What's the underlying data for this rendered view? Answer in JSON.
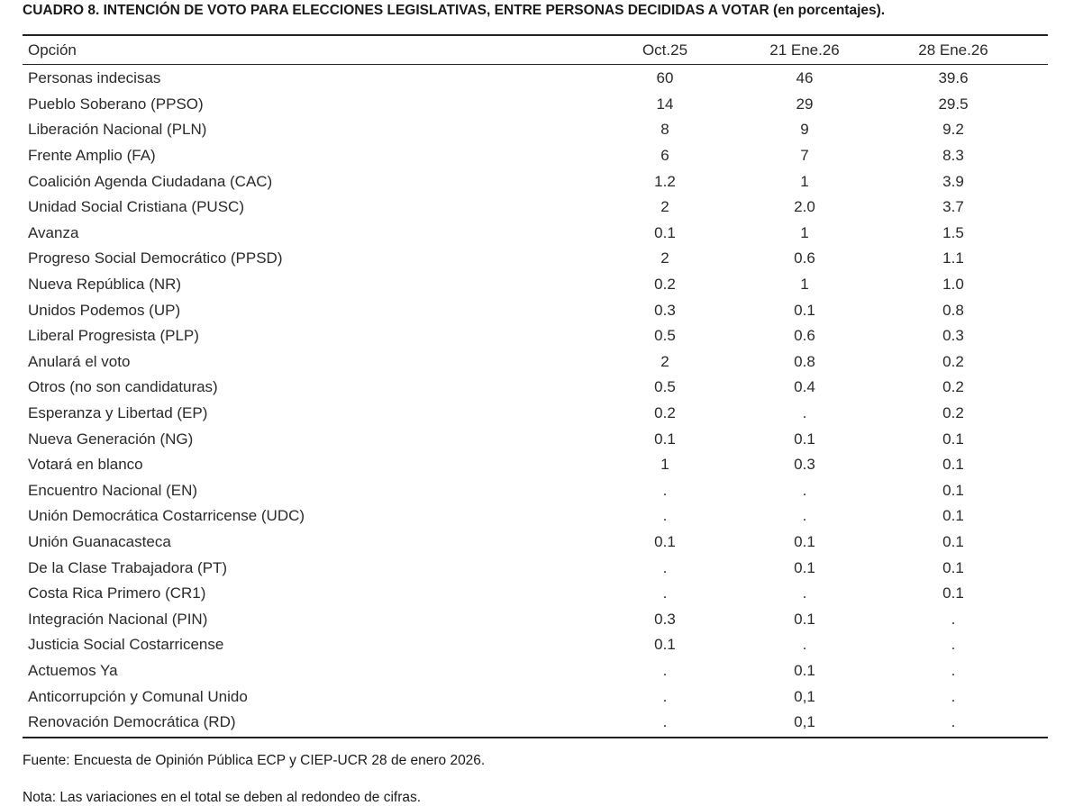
{
  "title": "CUADRO 8. INTENCIÓN DE VOTO PARA ELECCIONES LEGISLATIVAS, ENTRE PERSONAS DECIDIDAS A VOTAR (en porcentajes).",
  "table": {
    "headers": [
      "Opción",
      "Oct.25",
      "21 Ene.26",
      "28 Ene.26"
    ],
    "rows": [
      [
        "Personas indecisas",
        "60",
        "46",
        "39.6"
      ],
      [
        "Pueblo Soberano (PPSO)",
        "14",
        "29",
        "29.5"
      ],
      [
        "Liberación Nacional (PLN)",
        "8",
        "9",
        "9.2"
      ],
      [
        "Frente Amplio (FA)",
        "6",
        "7",
        "8.3"
      ],
      [
        "Coalición Agenda Ciudadana (CAC)",
        "1.2",
        "1",
        "3.9"
      ],
      [
        "Unidad Social Cristiana (PUSC)",
        "2",
        "2.0",
        "3.7"
      ],
      [
        "Avanza",
        "0.1",
        "1",
        "1.5"
      ],
      [
        "Progreso Social Democrático (PPSD)",
        "2",
        "0.6",
        "1.1"
      ],
      [
        "Nueva República (NR)",
        "0.2",
        "1",
        "1.0"
      ],
      [
        "Unidos Podemos (UP)",
        "0.3",
        "0.1",
        "0.8"
      ],
      [
        "Liberal Progresista (PLP)",
        "0.5",
        "0.6",
        "0.3"
      ],
      [
        "Anulará el voto",
        "2",
        "0.8",
        "0.2"
      ],
      [
        "Otros (no son candidaturas)",
        "0.5",
        "0.4",
        "0.2"
      ],
      [
        "Esperanza y Libertad (EP)",
        "0.2",
        ".",
        "0.2"
      ],
      [
        "Nueva Generación (NG)",
        "0.1",
        "0.1",
        "0.1"
      ],
      [
        "Votará en blanco",
        "1",
        "0.3",
        "0.1"
      ],
      [
        "Encuentro Nacional (EN)",
        ".",
        ".",
        "0.1"
      ],
      [
        "Unión Democrática Costarricense (UDC)",
        ".",
        ".",
        "0.1"
      ],
      [
        "Unión Guanacasteca",
        "0.1",
        "0.1",
        "0.1"
      ],
      [
        "De la Clase Trabajadora (PT)",
        ".",
        "0.1",
        "0.1"
      ],
      [
        "Costa Rica Primero (CR1)",
        ".",
        ".",
        "0.1"
      ],
      [
        "Integración Nacional (PIN)",
        "0.3",
        "0.1",
        "."
      ],
      [
        "Justicia Social Costarricense",
        "0.1",
        ".",
        "."
      ],
      [
        "Actuemos Ya",
        ".",
        "0.1",
        "."
      ],
      [
        "Anticorrupción y Comunal Unido",
        ".",
        "0,1",
        "."
      ],
      [
        "Renovación Democrática (RD)",
        ".",
        "0,1",
        "."
      ]
    ]
  },
  "footer": {
    "source": "Fuente: Encuesta de Opinión Pública ECP y CIEP-UCR 28 de enero 2026.",
    "note": "Nota: Las variaciones en el total se deben al redondeo de cifras."
  }
}
